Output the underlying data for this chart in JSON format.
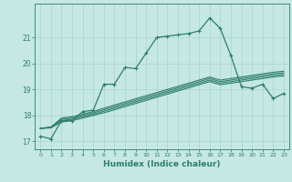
{
  "background_color": "#c5e8e2",
  "grid_color": "#a8d4cc",
  "line_color": "#2e7d6e",
  "xlabel": "Humidex (Indice chaleur)",
  "xlabel_fontsize": 6.5,
  "yticks": [
    17,
    18,
    19,
    20,
    21
  ],
  "xticks": [
    0,
    1,
    2,
    3,
    4,
    5,
    6,
    7,
    8,
    9,
    10,
    11,
    12,
    13,
    14,
    15,
    16,
    17,
    18,
    19,
    20,
    21,
    22,
    23
  ],
  "xlim": [
    -0.5,
    23.5
  ],
  "ylim": [
    16.7,
    22.3
  ],
  "lines": [
    {
      "y": [
        17.2,
        17.1,
        17.8,
        17.8,
        18.15,
        18.2,
        19.2,
        19.2,
        19.85,
        19.8,
        20.4,
        21.0,
        21.05,
        21.1,
        21.15,
        21.25,
        21.75,
        21.35,
        20.3,
        19.1,
        19.05,
        19.2,
        18.65,
        18.85
      ],
      "marker": true,
      "lw": 0.9
    },
    {
      "y": [
        17.5,
        17.55,
        17.9,
        17.95,
        18.05,
        18.15,
        18.28,
        18.4,
        18.52,
        18.64,
        18.76,
        18.88,
        19.0,
        19.12,
        19.24,
        19.36,
        19.48,
        19.36,
        19.42,
        19.48,
        19.54,
        19.6,
        19.66,
        19.7
      ],
      "marker": false,
      "lw": 0.8
    },
    {
      "y": [
        17.5,
        17.55,
        17.85,
        17.9,
        18.0,
        18.1,
        18.22,
        18.34,
        18.46,
        18.58,
        18.7,
        18.82,
        18.94,
        19.06,
        19.18,
        19.3,
        19.42,
        19.3,
        19.36,
        19.42,
        19.48,
        19.54,
        19.6,
        19.64
      ],
      "marker": false,
      "lw": 0.8
    },
    {
      "y": [
        17.5,
        17.55,
        17.8,
        17.85,
        17.95,
        18.05,
        18.16,
        18.28,
        18.4,
        18.52,
        18.64,
        18.76,
        18.88,
        19.0,
        19.12,
        19.24,
        19.36,
        19.24,
        19.3,
        19.36,
        19.42,
        19.48,
        19.54,
        19.58
      ],
      "marker": false,
      "lw": 0.8
    },
    {
      "y": [
        17.5,
        17.52,
        17.75,
        17.8,
        17.9,
        18.0,
        18.1,
        18.22,
        18.34,
        18.46,
        18.58,
        18.7,
        18.82,
        18.94,
        19.06,
        19.18,
        19.3,
        19.18,
        19.24,
        19.3,
        19.36,
        19.42,
        19.48,
        19.52
      ],
      "marker": false,
      "lw": 0.8
    }
  ]
}
